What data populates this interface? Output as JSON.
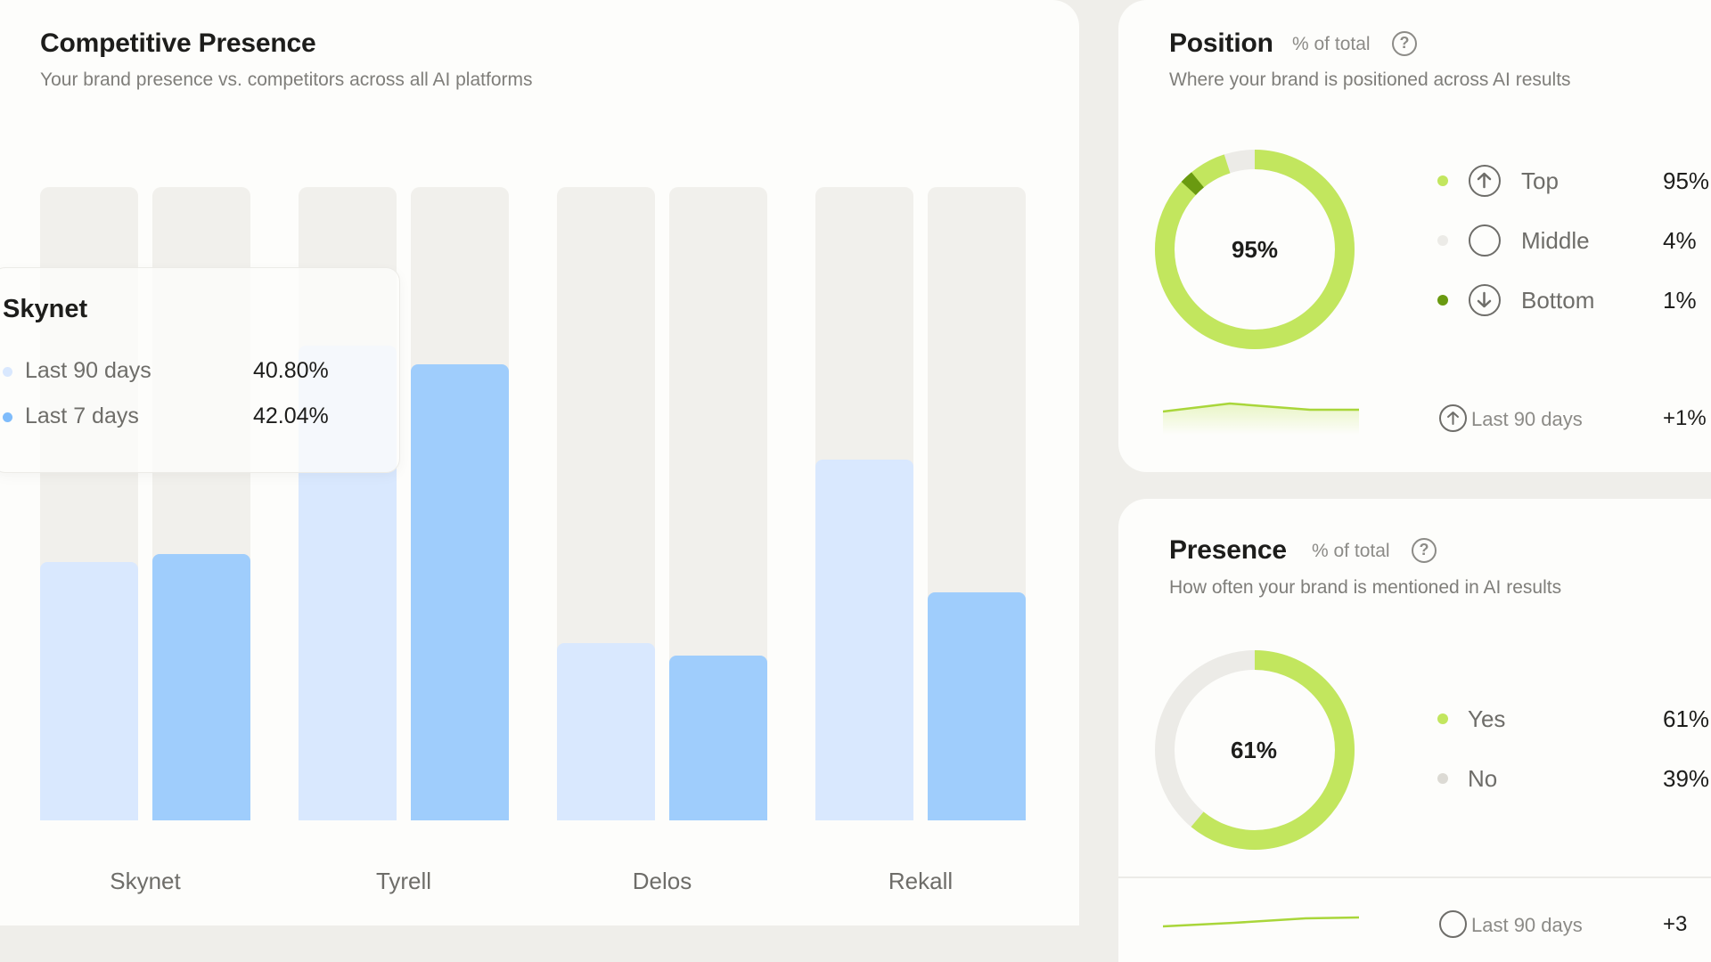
{
  "competitive": {
    "title": "Competitive Presence",
    "subtitle": "Your brand presence vs. competitors across all AI platforms",
    "tooltip": {
      "title": "Skynet",
      "rows": [
        {
          "label": "Last 90 days",
          "value": "40.80%"
        },
        {
          "label": "Last 7 days",
          "value": "42.04%"
        }
      ]
    }
  },
  "chart_data": {
    "type": "bar",
    "categories": [
      "Skynet",
      "Tyrell",
      "Delos",
      "Rekall"
    ],
    "series": [
      {
        "values": [
          40.8,
          75,
          28,
          57
        ]
      },
      {
        "values": [
          42.04,
          72,
          26,
          36
        ]
      }
    ],
    "ylim": [
      0,
      100
    ],
    "grid": false,
    "colors": {
      "last_90": "#d9e8fe",
      "last_7": "#9fcdfc",
      "track": "#f1f0ec"
    }
  },
  "position": {
    "title": "Position",
    "meta": "% of total",
    "subtitle": "Where your brand is positioned across AI results",
    "center": "95%",
    "legend": [
      {
        "label": "Top",
        "value": "95%",
        "icon": "arrow-up-circle-icon",
        "color": "#c2e65e"
      },
      {
        "label": "Middle",
        "value": "4%",
        "icon": "empty-circle-icon",
        "color": "#ecebe7"
      },
      {
        "label": "Bottom",
        "value": "1%",
        "icon": "arrow-down-circle-icon",
        "color": "#6a9a10"
      }
    ],
    "trend": {
      "label": "Last 90 days",
      "value": "+1%"
    }
  },
  "presence": {
    "title": "Presence",
    "meta": "% of total",
    "subtitle": "How often your brand is mentioned in AI results",
    "center": "61%",
    "legend": [
      {
        "label": "Yes",
        "value": "61%",
        "color": "#c2e65e"
      },
      {
        "label": "No",
        "value": "39%",
        "color": "#dcdad4"
      }
    ],
    "trend": {
      "label": "Last 90 days",
      "value": "+3"
    }
  }
}
